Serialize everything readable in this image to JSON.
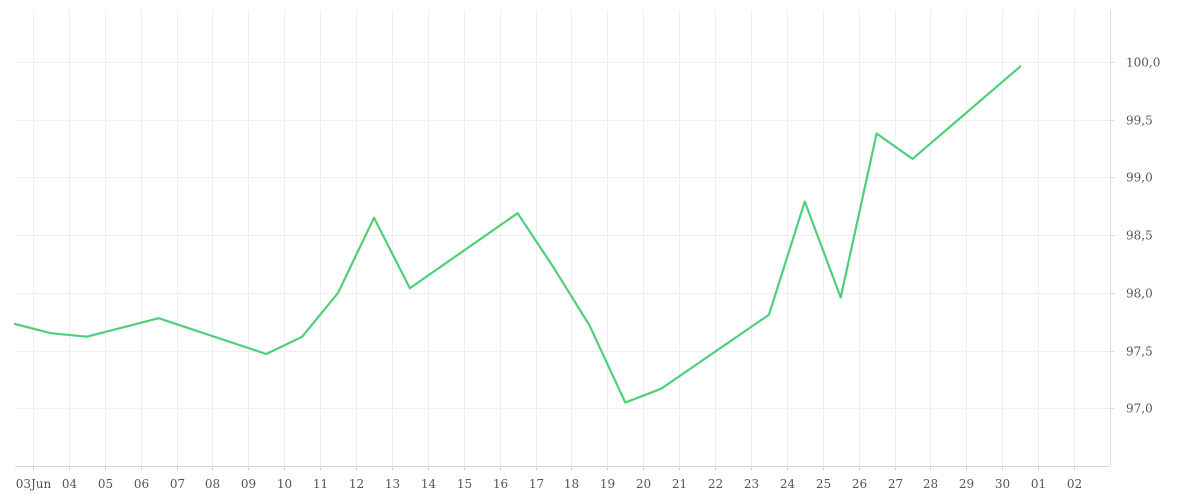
{
  "chart_data": {
    "type": "line",
    "title": "",
    "xlabel": "",
    "ylabel": "",
    "grid": true,
    "y_axis_position": "right",
    "colors": {
      "line": "#4ed07a"
    },
    "ylim": [
      96.5,
      100.45
    ],
    "y_ticks": [
      {
        "value": 97.0,
        "label": "97,0"
      },
      {
        "value": 97.5,
        "label": "97,5"
      },
      {
        "value": 98.0,
        "label": "98,0"
      },
      {
        "value": 98.5,
        "label": "98,5"
      },
      {
        "value": 99.0,
        "label": "99,0"
      },
      {
        "value": 99.5,
        "label": "99,5"
      },
      {
        "value": 100.0,
        "label": "100,0"
      }
    ],
    "xlim": [
      "2024-06-02T12:00",
      "2024-07-03T00:00"
    ],
    "x_ticks": [
      {
        "value": "2024-06-03",
        "label": "03Jun"
      },
      {
        "value": "2024-06-04",
        "label": "04"
      },
      {
        "value": "2024-06-05",
        "label": "05"
      },
      {
        "value": "2024-06-06",
        "label": "06"
      },
      {
        "value": "2024-06-07",
        "label": "07"
      },
      {
        "value": "2024-06-08",
        "label": "08"
      },
      {
        "value": "2024-06-09",
        "label": "09"
      },
      {
        "value": "2024-06-10",
        "label": "10"
      },
      {
        "value": "2024-06-11",
        "label": "11"
      },
      {
        "value": "2024-06-12",
        "label": "12"
      },
      {
        "value": "2024-06-13",
        "label": "13"
      },
      {
        "value": "2024-06-14",
        "label": "14"
      },
      {
        "value": "2024-06-15",
        "label": "15"
      },
      {
        "value": "2024-06-16",
        "label": "16"
      },
      {
        "value": "2024-06-17",
        "label": "17"
      },
      {
        "value": "2024-06-18",
        "label": "18"
      },
      {
        "value": "2024-06-19",
        "label": "19"
      },
      {
        "value": "2024-06-20",
        "label": "20"
      },
      {
        "value": "2024-06-21",
        "label": "21"
      },
      {
        "value": "2024-06-22",
        "label": "22"
      },
      {
        "value": "2024-06-23",
        "label": "23"
      },
      {
        "value": "2024-06-24",
        "label": "24"
      },
      {
        "value": "2024-06-25",
        "label": "25"
      },
      {
        "value": "2024-06-26",
        "label": "26"
      },
      {
        "value": "2024-06-27",
        "label": "27"
      },
      {
        "value": "2024-06-28",
        "label": "28"
      },
      {
        "value": "2024-06-29",
        "label": "29"
      },
      {
        "value": "2024-06-30",
        "label": "30"
      },
      {
        "value": "2024-07-01",
        "label": "01"
      },
      {
        "value": "2024-07-02",
        "label": "02"
      }
    ],
    "series": [
      {
        "x": [
          "2024-06-02T12:00",
          "2024-06-03T12:00",
          "2024-06-04T12:00",
          "2024-06-06T12:00",
          "2024-06-09T12:00",
          "2024-06-10T12:00",
          "2024-06-11T12:00",
          "2024-06-12T12:00",
          "2024-06-13T12:00",
          "2024-06-16T12:00",
          "2024-06-17T12:00",
          "2024-06-18T12:00",
          "2024-06-19T12:00",
          "2024-06-20T12:00",
          "2024-06-23T12:00",
          "2024-06-24T12:00",
          "2024-06-25T12:00",
          "2024-06-26T12:00",
          "2024-06-27T12:00",
          "2024-06-30T12:00"
        ],
        "values": [
          97.73,
          97.65,
          97.62,
          97.78,
          97.47,
          97.62,
          98.0,
          98.65,
          98.04,
          98.69,
          98.22,
          97.72,
          97.05,
          97.17,
          97.81,
          98.79,
          97.96,
          99.38,
          99.16,
          99.96
        ]
      }
    ]
  }
}
